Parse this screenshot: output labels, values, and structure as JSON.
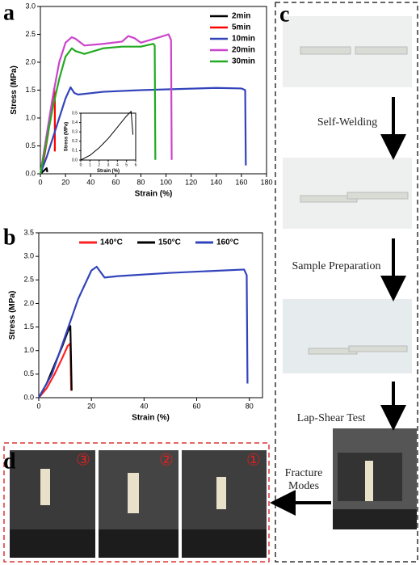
{
  "chart_data": [
    {
      "type": "line",
      "xlabel": "Strain (%)",
      "ylabel": "Stress (MPa)",
      "xlim": [
        0,
        180
      ],
      "xticks": [
        0,
        20,
        40,
        60,
        80,
        100,
        120,
        140,
        160,
        180
      ],
      "ylim": [
        0,
        3
      ],
      "yticks": [
        {
          "value": 0,
          "label": "0.0"
        },
        0.5,
        {
          "value": 1,
          "label": "1.0"
        },
        1.5,
        {
          "value": 2,
          "label": "2.0"
        },
        2.5,
        {
          "value": 3,
          "label": "3.0"
        }
      ],
      "legend": "upper right",
      "series": [
        {
          "name": "2min",
          "color": "#000000",
          "x": [
            0,
            2,
            4,
            5,
            5.5
          ],
          "values": [
            0,
            0.04,
            0.08,
            0.1,
            0.03
          ]
        },
        {
          "name": "5min",
          "color": "#ff0000",
          "x": [
            0,
            3,
            6,
            9,
            11,
            11.5,
            11.5
          ],
          "values": [
            0,
            0.3,
            0.7,
            1.2,
            1.53,
            1.3,
            0.4
          ]
        },
        {
          "name": "10min",
          "color": "#3344bb",
          "x": [
            0,
            5,
            10,
            15,
            20,
            24,
            27,
            30,
            50,
            80,
            110,
            140,
            160,
            163,
            163.5
          ],
          "values": [
            0,
            0.3,
            0.65,
            1,
            1.35,
            1.55,
            1.45,
            1.42,
            1.47,
            1.5,
            1.52,
            1.54,
            1.53,
            1.5,
            0.15
          ]
        },
        {
          "name": "20min",
          "color": "#cc44cc",
          "x": [
            0,
            5,
            10,
            15,
            20,
            25,
            28,
            35,
            50,
            65,
            70,
            75,
            80,
            95,
            102,
            104,
            104.5
          ],
          "values": [
            0,
            0.7,
            1.4,
            2,
            2.35,
            2.45,
            2.42,
            2.3,
            2.33,
            2.37,
            2.47,
            2.43,
            2.35,
            2.45,
            2.5,
            2.4,
            0.25
          ]
        },
        {
          "name": "30min",
          "color": "#22aa22",
          "x": [
            0,
            5,
            10,
            15,
            20,
            25,
            28,
            35,
            50,
            65,
            80,
            90,
            91,
            91.5
          ],
          "values": [
            0,
            0.6,
            1.2,
            1.7,
            2.1,
            2.25,
            2.2,
            2.15,
            2.25,
            2.28,
            2.28,
            2.33,
            2.3,
            0.25
          ]
        }
      ]
    },
    {
      "type": "line",
      "xlabel": "Strain (%)",
      "ylabel": "Stress (MPa)",
      "xlim": [
        0,
        6
      ],
      "xticks": [
        0,
        1,
        2,
        3,
        4,
        5,
        6
      ],
      "ylim": [
        0,
        0.5
      ],
      "yticks": [
        {
          "value": 0,
          "label": "0.0"
        },
        0.1,
        0.2,
        0.3,
        0.4,
        0.5
      ],
      "series": [
        {
          "color": "#000000",
          "x": [
            0,
            1,
            2,
            3,
            4,
            5,
            5.5,
            5.7
          ],
          "values": [
            0,
            0.05,
            0.13,
            0.23,
            0.35,
            0.47,
            0.52,
            0.27
          ]
        }
      ]
    },
    {
      "type": "line",
      "xlabel": "Strain (%)",
      "ylabel": "Stress (MPa)",
      "xlim": [
        0,
        85
      ],
      "xticks": [
        0,
        20,
        40,
        60,
        80
      ],
      "ylim": [
        0,
        3.5
      ],
      "yticks": [
        {
          "value": 0,
          "label": "0.0"
        },
        0.5,
        {
          "value": 1,
          "label": "1.0"
        },
        1.5,
        {
          "value": 2,
          "label": "2.0"
        },
        2.5,
        {
          "value": 3,
          "label": "3.0"
        },
        3.5
      ],
      "legend": "upper center",
      "series": [
        {
          "name": "140°C",
          "color": "#ff2222",
          "x": [
            0,
            3,
            6,
            9,
            11,
            12,
            12.3
          ],
          "values": [
            0,
            0.2,
            0.5,
            0.85,
            1.1,
            1.15,
            0.15
          ]
        },
        {
          "name": "150°C",
          "color": "#000000",
          "x": [
            0,
            3,
            6,
            9,
            11,
            12,
            12.5
          ],
          "values": [
            0,
            0.3,
            0.7,
            1.1,
            1.4,
            1.52,
            0.15
          ]
        },
        {
          "name": "160°C",
          "color": "#3344bb",
          "x": [
            0,
            5,
            10,
            15,
            20,
            22,
            25,
            30,
            50,
            70,
            78,
            79,
            79.3
          ],
          "values": [
            0,
            0.5,
            1.3,
            2.1,
            2.7,
            2.78,
            2.55,
            2.58,
            2.65,
            2.7,
            2.72,
            2.6,
            0.3
          ]
        }
      ]
    }
  ],
  "panel_labels": [
    "a",
    "b",
    "c",
    "d"
  ],
  "steps": [
    "Self-Welding",
    "Sample Preparation",
    "Lap-Shear Test",
    "Fracture Modes"
  ],
  "fracture_markers": [
    "③",
    "②",
    "①"
  ]
}
